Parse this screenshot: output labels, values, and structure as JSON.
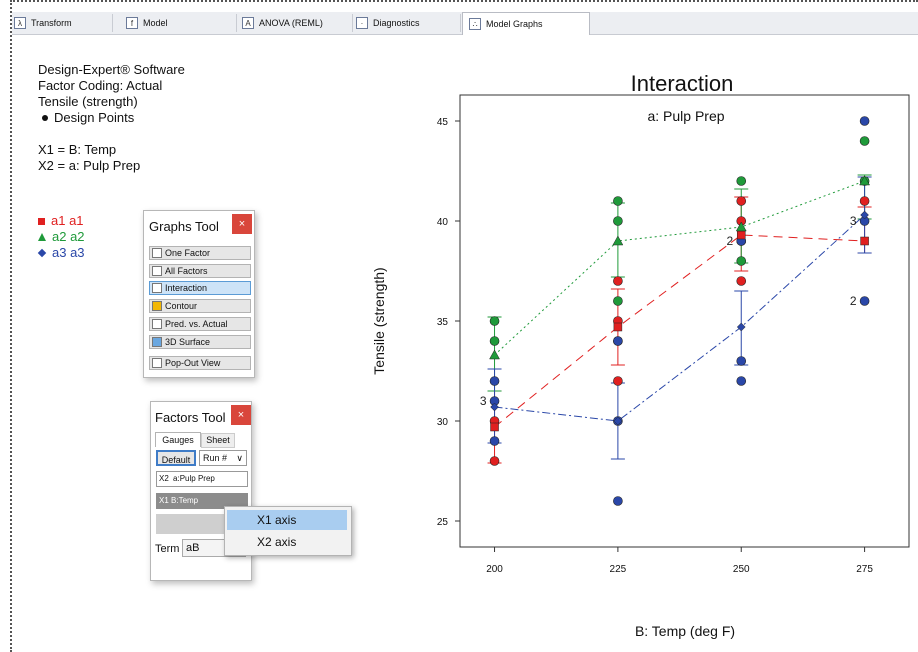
{
  "tabs": [
    {
      "label": "Transform",
      "icon": "lambda-icon"
    },
    {
      "label": "Model",
      "icon": "fx-icon"
    },
    {
      "label": "ANOVA (REML)",
      "icon": "anova-icon"
    },
    {
      "label": "Diagnostics",
      "icon": "diagnostics-icon"
    },
    {
      "label": "Model Graphs",
      "icon": "model-graphs-icon"
    }
  ],
  "info": {
    "line1": "Design-Expert® Software",
    "line2": "Factor Coding: Actual",
    "line3": "Tensile (strength)",
    "line4": "Design Points",
    "line5": "X1 = B: Temp",
    "line6": "X2 = a: Pulp Prep"
  },
  "legend": [
    {
      "label": "a1 a1",
      "color": "#e02020",
      "marker": "square"
    },
    {
      "label": "a2 a2",
      "color": "#1f9a3a",
      "marker": "triangle"
    },
    {
      "label": "a3 a3",
      "color": "#2a47a8",
      "marker": "diamond"
    }
  ],
  "graphs_tool": {
    "title": "Graphs Tool",
    "close": "×",
    "buttons": [
      "One Factor",
      "All Factors",
      "Interaction",
      "Contour",
      "Pred. vs. Actual",
      "3D Surface"
    ],
    "selected": "Interaction",
    "popout": "Pop-Out View"
  },
  "factors_tool": {
    "title": "Factors Tool",
    "close": "×",
    "tab_gauges": "Gauges",
    "tab_sheet": "Sheet",
    "default_btn": "Default",
    "run_select": "Run #",
    "row_x2_tag": "X2",
    "row_x2_value": "a:Pulp Prep",
    "row_x1": "X1 B:Temp",
    "term_label": "Term",
    "term_value": "aB"
  },
  "context_menu": {
    "items": [
      "X1 axis",
      "X2 axis"
    ],
    "highlighted": "X1 axis"
  },
  "chart_data": {
    "type": "line",
    "title": "Interaction",
    "subtitle": "a: Pulp Prep",
    "xlabel": "B: Temp (deg F)",
    "ylabel": "Tensile (strength)",
    "x": [
      200,
      225,
      250,
      275
    ],
    "xticks": [
      "200",
      "225",
      "250",
      "275"
    ],
    "yticks": [
      "25",
      "30",
      "35",
      "40",
      "45"
    ],
    "xlim": [
      193,
      284
    ],
    "ylim": [
      23.7,
      46.3
    ],
    "series": [
      {
        "name": "a1",
        "color": "#e02020",
        "marker": "square",
        "dash": "9 6",
        "means": [
          29.7,
          34.7,
          39.3,
          39.0
        ],
        "lo": [
          27.9,
          32.8,
          37.5,
          38.4
        ],
        "hi": [
          31.5,
          36.6,
          41.2,
          40.7
        ],
        "points": [
          [
            200,
            28
          ],
          [
            200,
            30
          ],
          [
            225,
            32
          ],
          [
            225,
            34
          ],
          [
            225,
            35
          ],
          [
            225,
            37
          ],
          [
            250,
            37
          ],
          [
            250,
            40
          ],
          [
            250,
            41
          ],
          [
            275,
            41
          ]
        ]
      },
      {
        "name": "a2",
        "color": "#1f9a3a",
        "marker": "triangle",
        "dash": "2 3",
        "means": [
          33.3,
          39.0,
          39.7,
          42.0
        ],
        "lo": [
          31.5,
          37.2,
          37.9,
          40.1
        ],
        "hi": [
          35.2,
          40.9,
          41.6,
          42.3
        ],
        "points": [
          [
            200,
            34
          ],
          [
            200,
            35
          ],
          [
            225,
            36
          ],
          [
            225,
            40
          ],
          [
            225,
            41
          ],
          [
            250,
            38
          ],
          [
            250,
            39
          ],
          [
            250,
            42
          ],
          [
            275,
            42
          ],
          [
            275,
            44
          ]
        ]
      },
      {
        "name": "a3",
        "color": "#2a47a8",
        "marker": "diamond",
        "dash": "8 3 2 3",
        "means": [
          30.7,
          30.0,
          34.7,
          40.3
        ],
        "lo": [
          28.9,
          28.1,
          32.8,
          38.4
        ],
        "hi": [
          32.6,
          31.9,
          36.5,
          42.2
        ],
        "points": [
          [
            200,
            29
          ],
          [
            200,
            31
          ],
          [
            200,
            32
          ],
          [
            225,
            26
          ],
          [
            225,
            30
          ],
          [
            225,
            34
          ],
          [
            250,
            32
          ],
          [
            250,
            33
          ],
          [
            250,
            39
          ],
          [
            275,
            36
          ],
          [
            275,
            40
          ],
          [
            275,
            45
          ]
        ]
      }
    ],
    "annotations": [
      {
        "text": "3",
        "x": 200,
        "y": 31
      },
      {
        "text": "2",
        "x": 250,
        "y": 39
      },
      {
        "text": "3",
        "x": 275,
        "y": 40
      },
      {
        "text": "2",
        "x": 275,
        "y": 36
      }
    ]
  }
}
